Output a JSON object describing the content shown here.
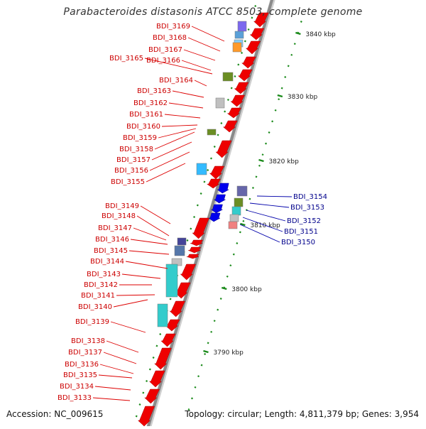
{
  "title": "Parabacteroides distasonis ATCC 8503, complete genome",
  "accession": "Accession: NC_009615",
  "topology": "Topology: circular; Length: 4,811,379 bp; Genes: 3,954",
  "colors": {
    "forward_gene": "#ee0000",
    "reverse_gene": "#0000ee",
    "left_label": "#cc0000",
    "right_label": "#00008b",
    "tick": "#1a8a1a",
    "backbone": "#888888"
  },
  "scale_labels": [
    {
      "kbp": 3840,
      "label": "3840 kbp"
    },
    {
      "kbp": 3830,
      "label": "3830 kbp"
    },
    {
      "kbp": 3820,
      "label": "3820 kbp"
    },
    {
      "kbp": 3810,
      "label": "3810 kbp"
    },
    {
      "kbp": 3800,
      "label": "3800 kbp"
    },
    {
      "kbp": 3790,
      "label": "3790 kbp"
    }
  ],
  "left_genes": [
    "BDI_3169",
    "BDI_3168",
    "BDI_3167",
    "BDI_3166",
    "BDI_3165",
    "BDI_3164",
    "BDI_3163",
    "BDI_3162",
    "BDI_3161",
    "BDI_3160",
    "BDI_3159",
    "BDI_3158",
    "BDI_3157",
    "BDI_3156",
    "BDI_3155",
    "BDI_3149",
    "BDI_3148",
    "BDI_3147",
    "BDI_3146",
    "BDI_3145",
    "BDI_3144",
    "BDI_3143",
    "BDI_3142",
    "BDI_3141",
    "BDI_3140",
    "BDI_3139",
    "BDI_3138",
    "BDI_3137",
    "BDI_3136",
    "BDI_3135",
    "BDI_3134",
    "BDI_3133"
  ],
  "right_genes": [
    "BDI_3154",
    "BDI_3153",
    "BDI_3152",
    "BDI_3151",
    "BDI_3150"
  ]
}
